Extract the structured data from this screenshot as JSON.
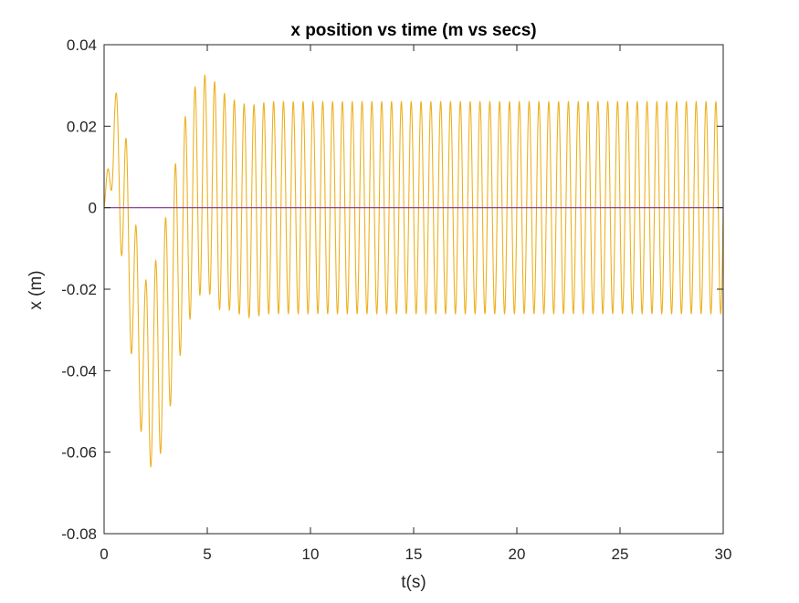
{
  "chart_data": {
    "type": "line",
    "title": "x position vs time (m vs secs)",
    "xlabel": "t(s)",
    "ylabel": "x (m)",
    "xlim": [
      0,
      30
    ],
    "ylim": [
      -0.08,
      0.04
    ],
    "xticks": [
      0,
      5,
      10,
      15,
      20,
      25,
      30
    ],
    "xtick_labels": [
      "0",
      "5",
      "10",
      "15",
      "20",
      "25",
      "30"
    ],
    "yticks": [
      -0.08,
      -0.06,
      -0.04,
      -0.02,
      0,
      0.02,
      0.04
    ],
    "ytick_labels": [
      "-0.08",
      "-0.06",
      "-0.04",
      "-0.02",
      "0",
      "0.02",
      "0.04"
    ],
    "grid": false,
    "legend": "none",
    "series": [
      {
        "color": "#EDB120",
        "oscillation_frequency_hz": 2.1,
        "steady_state_amplitude": 0.026,
        "envelope_keypoints": {
          "t": [
            0,
            0.5,
            1.0,
            1.5,
            2.0,
            2.5,
            3.0,
            3.5,
            4.0,
            4.5,
            5.0,
            5.5,
            6.0,
            7.0,
            8.0,
            30.0
          ],
          "upper": [
            0.0,
            0.03,
            0.02,
            -0.003,
            -0.018,
            -0.013,
            -0.002,
            0.012,
            0.024,
            0.031,
            0.033,
            0.03,
            0.027,
            0.025,
            0.026,
            0.026
          ],
          "lower": [
            0.0,
            0.006,
            -0.02,
            -0.045,
            -0.062,
            -0.065,
            -0.055,
            -0.04,
            -0.03,
            -0.022,
            -0.02,
            -0.025,
            -0.025,
            -0.027,
            -0.026,
            -0.026
          ]
        }
      },
      {
        "color": "#7E2F8E",
        "x": [
          0,
          30
        ],
        "y": [
          0,
          0
        ]
      }
    ]
  }
}
